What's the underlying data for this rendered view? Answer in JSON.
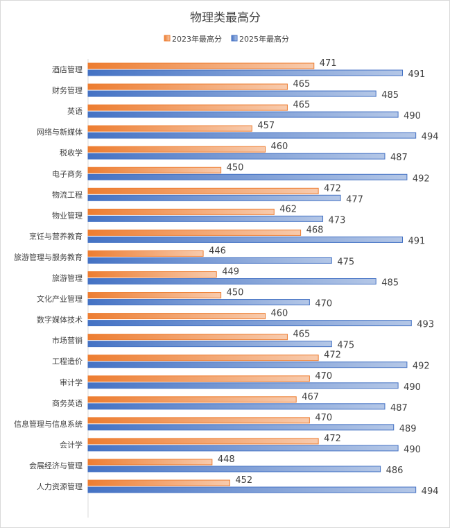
{
  "chart_data": {
    "type": "bar",
    "orientation": "horizontal",
    "title": "物理类最高分",
    "legend_position": "top",
    "grid": false,
    "xlim": [
      420,
      500
    ],
    "categories": [
      "酒店管理",
      "财务管理",
      "英语",
      "网络与新媒体",
      "税收学",
      "电子商务",
      "物流工程",
      "物业管理",
      "烹饪与营养教育",
      "旅游管理与服务教育",
      "旅游管理",
      "文化产业管理",
      "数字媒体技术",
      "市场营销",
      "工程造价",
      "审计学",
      "商务英语",
      "信息管理与信息系统",
      "会计学",
      "会展经济与管理",
      "人力资源管理"
    ],
    "series": [
      {
        "name": "2023年最高分",
        "color": "#ED7D31",
        "values": [
          471,
          465,
          465,
          457,
          460,
          450,
          472,
          462,
          468,
          446,
          449,
          450,
          460,
          465,
          472,
          470,
          467,
          470,
          472,
          448,
          452
        ]
      },
      {
        "name": "2025年最高分",
        "color": "#4472C4",
        "values": [
          491,
          485,
          490,
          494,
          487,
          492,
          477,
          473,
          491,
          475,
          485,
          470,
          493,
          475,
          492,
          490,
          487,
          489,
          490,
          486,
          494
        ]
      }
    ]
  }
}
